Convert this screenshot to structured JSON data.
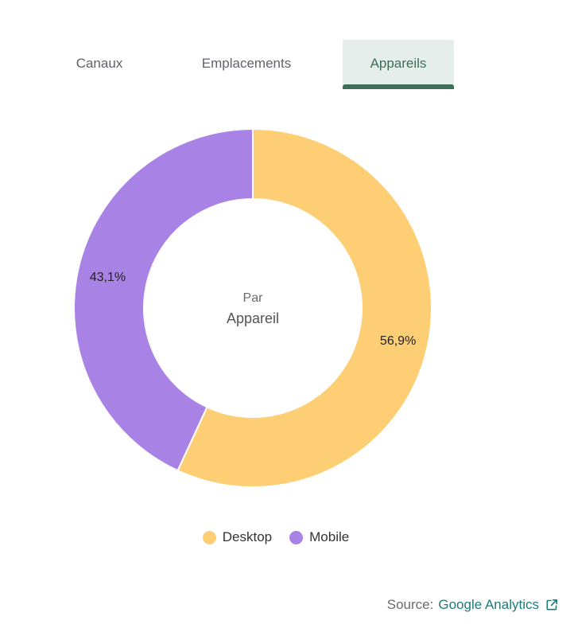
{
  "tabs": [
    {
      "label": "Canaux",
      "active": false
    },
    {
      "label": "Emplacements",
      "active": false
    },
    {
      "label": "Appareils",
      "active": true
    }
  ],
  "colors": {
    "accent": "#3d6e57",
    "active_tab_bg": "#e6eeec",
    "link": "#1f7a78"
  },
  "chart_data": {
    "type": "pie",
    "variant": "donut",
    "center_label": {
      "line1": "Par",
      "line2": "Appareil"
    },
    "slices": [
      {
        "name": "Desktop",
        "value": 56.9,
        "label": "56,9%",
        "color": "#fdce74"
      },
      {
        "name": "Mobile",
        "value": 43.1,
        "label": "43,1%",
        "color": "#a982e6"
      }
    ],
    "legend_position": "bottom"
  },
  "source": {
    "label": "Source:",
    "link_text": "Google Analytics",
    "icon": "external-link-icon"
  }
}
